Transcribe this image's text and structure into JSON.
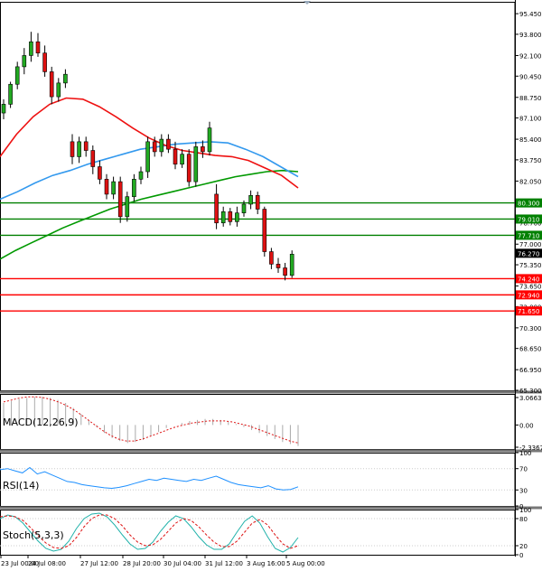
{
  "chart_data": [
    {
      "type": "candlestick",
      "panel": "price",
      "ylim": [
        65.3,
        96.4
      ],
      "price_ticks": [
        "95.450",
        "93.800",
        "92.100",
        "90.450",
        "88.750",
        "87.100",
        "85.400",
        "83.750",
        "82.050",
        "80.400",
        "78.700",
        "77.000",
        "75.350",
        "73.650",
        "72.000",
        "70.300",
        "68.650",
        "66.950",
        "65.300"
      ],
      "x_labels": [
        "23 Jul 00:00",
        "24 Jul 08:00",
        "27 Jul 12:00",
        "28 Jul 20:00",
        "30 Jul 04:00",
        "31 Jul 12:00",
        "3 Aug 16:00",
        "5 Aug 00:00"
      ],
      "candles": [
        {
          "o": 87.5,
          "h": 88.6,
          "l": 87.0,
          "c": 88.2
        },
        {
          "o": 88.2,
          "h": 90.0,
          "l": 87.9,
          "c": 89.8
        },
        {
          "o": 89.8,
          "h": 91.6,
          "l": 89.4,
          "c": 91.2
        },
        {
          "o": 91.2,
          "h": 92.7,
          "l": 90.6,
          "c": 92.1
        },
        {
          "o": 92.1,
          "h": 94.0,
          "l": 91.6,
          "c": 93.2
        },
        {
          "o": 93.2,
          "h": 93.9,
          "l": 92.0,
          "c": 92.3
        },
        {
          "o": 92.3,
          "h": 92.9,
          "l": 90.4,
          "c": 90.8
        },
        {
          "o": 90.8,
          "h": 91.2,
          "l": 88.2,
          "c": 88.8
        },
        {
          "o": 88.8,
          "h": 90.3,
          "l": 88.4,
          "c": 89.9
        },
        {
          "o": 89.9,
          "h": 91.0,
          "l": 89.5,
          "c": 90.6
        },
        {
          "o": 85.2,
          "h": 85.8,
          "l": 83.4,
          "c": 84.0
        },
        {
          "o": 84.0,
          "h": 85.6,
          "l": 83.5,
          "c": 85.2
        },
        {
          "o": 85.2,
          "h": 85.6,
          "l": 84.0,
          "c": 84.5
        },
        {
          "o": 84.5,
          "h": 84.9,
          "l": 82.6,
          "c": 83.2
        },
        {
          "o": 83.2,
          "h": 83.7,
          "l": 81.8,
          "c": 82.2
        },
        {
          "o": 82.2,
          "h": 82.6,
          "l": 80.6,
          "c": 81.0
        },
        {
          "o": 81.0,
          "h": 82.4,
          "l": 80.6,
          "c": 82.0
        },
        {
          "o": 82.0,
          "h": 82.4,
          "l": 78.7,
          "c": 79.2
        },
        {
          "o": 79.2,
          "h": 81.2,
          "l": 78.8,
          "c": 80.8
        },
        {
          "o": 80.8,
          "h": 82.6,
          "l": 80.4,
          "c": 82.2
        },
        {
          "o": 82.2,
          "h": 83.2,
          "l": 81.8,
          "c": 82.8
        },
        {
          "o": 82.8,
          "h": 85.6,
          "l": 82.3,
          "c": 85.2
        },
        {
          "o": 85.2,
          "h": 85.6,
          "l": 84.0,
          "c": 84.4
        },
        {
          "o": 84.4,
          "h": 85.8,
          "l": 84.0,
          "c": 85.4
        },
        {
          "o": 85.4,
          "h": 85.8,
          "l": 84.3,
          "c": 84.6
        },
        {
          "o": 84.6,
          "h": 85.2,
          "l": 83.0,
          "c": 83.4
        },
        {
          "o": 83.4,
          "h": 84.6,
          "l": 83.1,
          "c": 84.2
        },
        {
          "o": 84.2,
          "h": 84.6,
          "l": 81.6,
          "c": 82.0
        },
        {
          "o": 82.0,
          "h": 85.2,
          "l": 81.6,
          "c": 84.8
        },
        {
          "o": 84.8,
          "h": 85.3,
          "l": 83.9,
          "c": 84.4
        },
        {
          "o": 84.4,
          "h": 86.8,
          "l": 84.1,
          "c": 86.3
        },
        {
          "o": 81.0,
          "h": 81.8,
          "l": 78.2,
          "c": 78.7
        },
        {
          "o": 78.7,
          "h": 80.0,
          "l": 78.4,
          "c": 79.6
        },
        {
          "o": 79.6,
          "h": 79.9,
          "l": 78.5,
          "c": 78.8
        },
        {
          "o": 78.8,
          "h": 80.0,
          "l": 78.4,
          "c": 79.5
        },
        {
          "o": 79.5,
          "h": 80.5,
          "l": 79.2,
          "c": 80.2
        },
        {
          "o": 80.2,
          "h": 81.3,
          "l": 79.8,
          "c": 80.9
        },
        {
          "o": 80.9,
          "h": 81.2,
          "l": 79.4,
          "c": 79.8
        },
        {
          "o": 79.8,
          "h": 80.0,
          "l": 76.0,
          "c": 76.4
        },
        {
          "o": 76.4,
          "h": 76.7,
          "l": 75.0,
          "c": 75.4
        },
        {
          "o": 75.4,
          "h": 75.9,
          "l": 74.7,
          "c": 75.1
        },
        {
          "o": 75.1,
          "h": 75.5,
          "l": 74.1,
          "c": 74.5
        },
        {
          "o": 74.5,
          "h": 76.5,
          "l": 74.3,
          "c": 76.2
        }
      ],
      "ma_red": [
        84.0,
        85.8,
        87.2,
        88.2,
        88.7,
        88.6,
        88.0,
        87.2,
        86.3,
        85.5,
        84.9,
        84.5,
        84.3,
        84.1,
        84.0,
        83.7,
        83.1,
        82.5,
        81.5
      ],
      "ma_blue": [
        80.6,
        81.2,
        81.9,
        82.5,
        82.9,
        83.4,
        83.8,
        84.2,
        84.6,
        84.8,
        85.0,
        85.1,
        85.2,
        85.1,
        84.6,
        84.0,
        83.2,
        82.4
      ],
      "ma_green": [
        75.8,
        76.5,
        77.1,
        77.7,
        78.3,
        78.8,
        79.3,
        79.8,
        80.2,
        80.6,
        80.9,
        81.2,
        81.5,
        81.8,
        82.1,
        82.4,
        82.6,
        82.8,
        82.9,
        82.8
      ],
      "hlines": [
        {
          "value": 80.3,
          "label": "80.300",
          "color": "#008000"
        },
        {
          "value": 79.01,
          "label": "79.010",
          "color": "#008000"
        },
        {
          "value": 77.71,
          "label": "77.710",
          "color": "#008000"
        },
        {
          "value": 74.24,
          "label": "74.240",
          "color": "#ff0000"
        },
        {
          "value": 72.94,
          "label": "72.940",
          "color": "#ff0000"
        },
        {
          "value": 71.65,
          "label": "71.650",
          "color": "#ff0000"
        }
      ],
      "current_price": "76.270"
    },
    {
      "type": "bar",
      "panel": "macd",
      "label": "MACD(12,26,9)",
      "ticks": [
        "3.0663",
        "0.00",
        "-2.3367"
      ],
      "ylim": [
        -2.4,
        3.1
      ],
      "histogram": [
        2.2,
        2.4,
        2.6,
        2.7,
        2.8,
        2.8,
        2.7,
        2.5,
        2.2,
        1.7,
        1.1,
        0.5,
        -0.2,
        -0.8,
        -1.3,
        -1.6,
        -1.8,
        -1.7,
        -1.5,
        -1.1,
        -0.7,
        -0.3,
        0.0,
        0.2,
        0.4,
        0.5,
        0.6,
        0.6,
        0.5,
        0.3,
        0.1,
        -0.2,
        -0.5,
        -0.8,
        -1.1,
        -1.4,
        -1.7,
        -1.9,
        -2.1
      ],
      "signal": [
        2.3,
        2.5,
        2.7,
        2.8,
        2.8,
        2.7,
        2.5,
        2.2,
        1.8,
        1.3,
        0.7,
        0.1,
        -0.5,
        -1.0,
        -1.4,
        -1.6,
        -1.6,
        -1.4,
        -1.1,
        -0.8,
        -0.5,
        -0.2,
        0.0,
        0.2,
        0.3,
        0.4,
        0.4,
        0.4,
        0.3,
        0.1,
        -0.1,
        -0.4,
        -0.7,
        -1.0,
        -1.3,
        -1.6,
        -1.8
      ]
    },
    {
      "type": "line",
      "panel": "rsi",
      "label": "RSI(14)",
      "ticks": [
        "100",
        "70",
        "30",
        "0"
      ],
      "ylim": [
        0,
        100
      ],
      "levels": [
        70,
        30
      ],
      "values": [
        68,
        70,
        66,
        62,
        72,
        60,
        64,
        58,
        52,
        46,
        44,
        40,
        38,
        36,
        34,
        33,
        35,
        38,
        42,
        46,
        50,
        48,
        52,
        50,
        48,
        46,
        50,
        48,
        52,
        56,
        50,
        44,
        40,
        38,
        36,
        34,
        38,
        32,
        30,
        31,
        36
      ]
    },
    {
      "type": "line",
      "panel": "stoch",
      "label": "Stoch(5,3,3)",
      "ticks": [
        "100",
        "80",
        "20",
        "0"
      ],
      "ylim": [
        0,
        100
      ],
      "levels": [
        80,
        20
      ],
      "main": [
        80,
        88,
        84,
        70,
        50,
        30,
        14,
        8,
        12,
        30,
        58,
        80,
        90,
        92,
        84,
        66,
        44,
        24,
        12,
        14,
        28,
        52,
        72,
        86,
        80,
        62,
        40,
        22,
        12,
        12,
        24,
        50,
        74,
        86,
        70,
        40,
        14,
        6,
        16,
        38
      ],
      "signal": [
        84,
        86,
        84,
        76,
        60,
        42,
        26,
        16,
        14,
        20,
        38,
        62,
        80,
        88,
        88,
        80,
        64,
        44,
        28,
        20,
        22,
        34,
        52,
        70,
        80,
        76,
        62,
        44,
        28,
        18,
        18,
        30,
        50,
        70,
        78,
        66,
        44,
        24,
        14,
        20
      ]
    }
  ]
}
